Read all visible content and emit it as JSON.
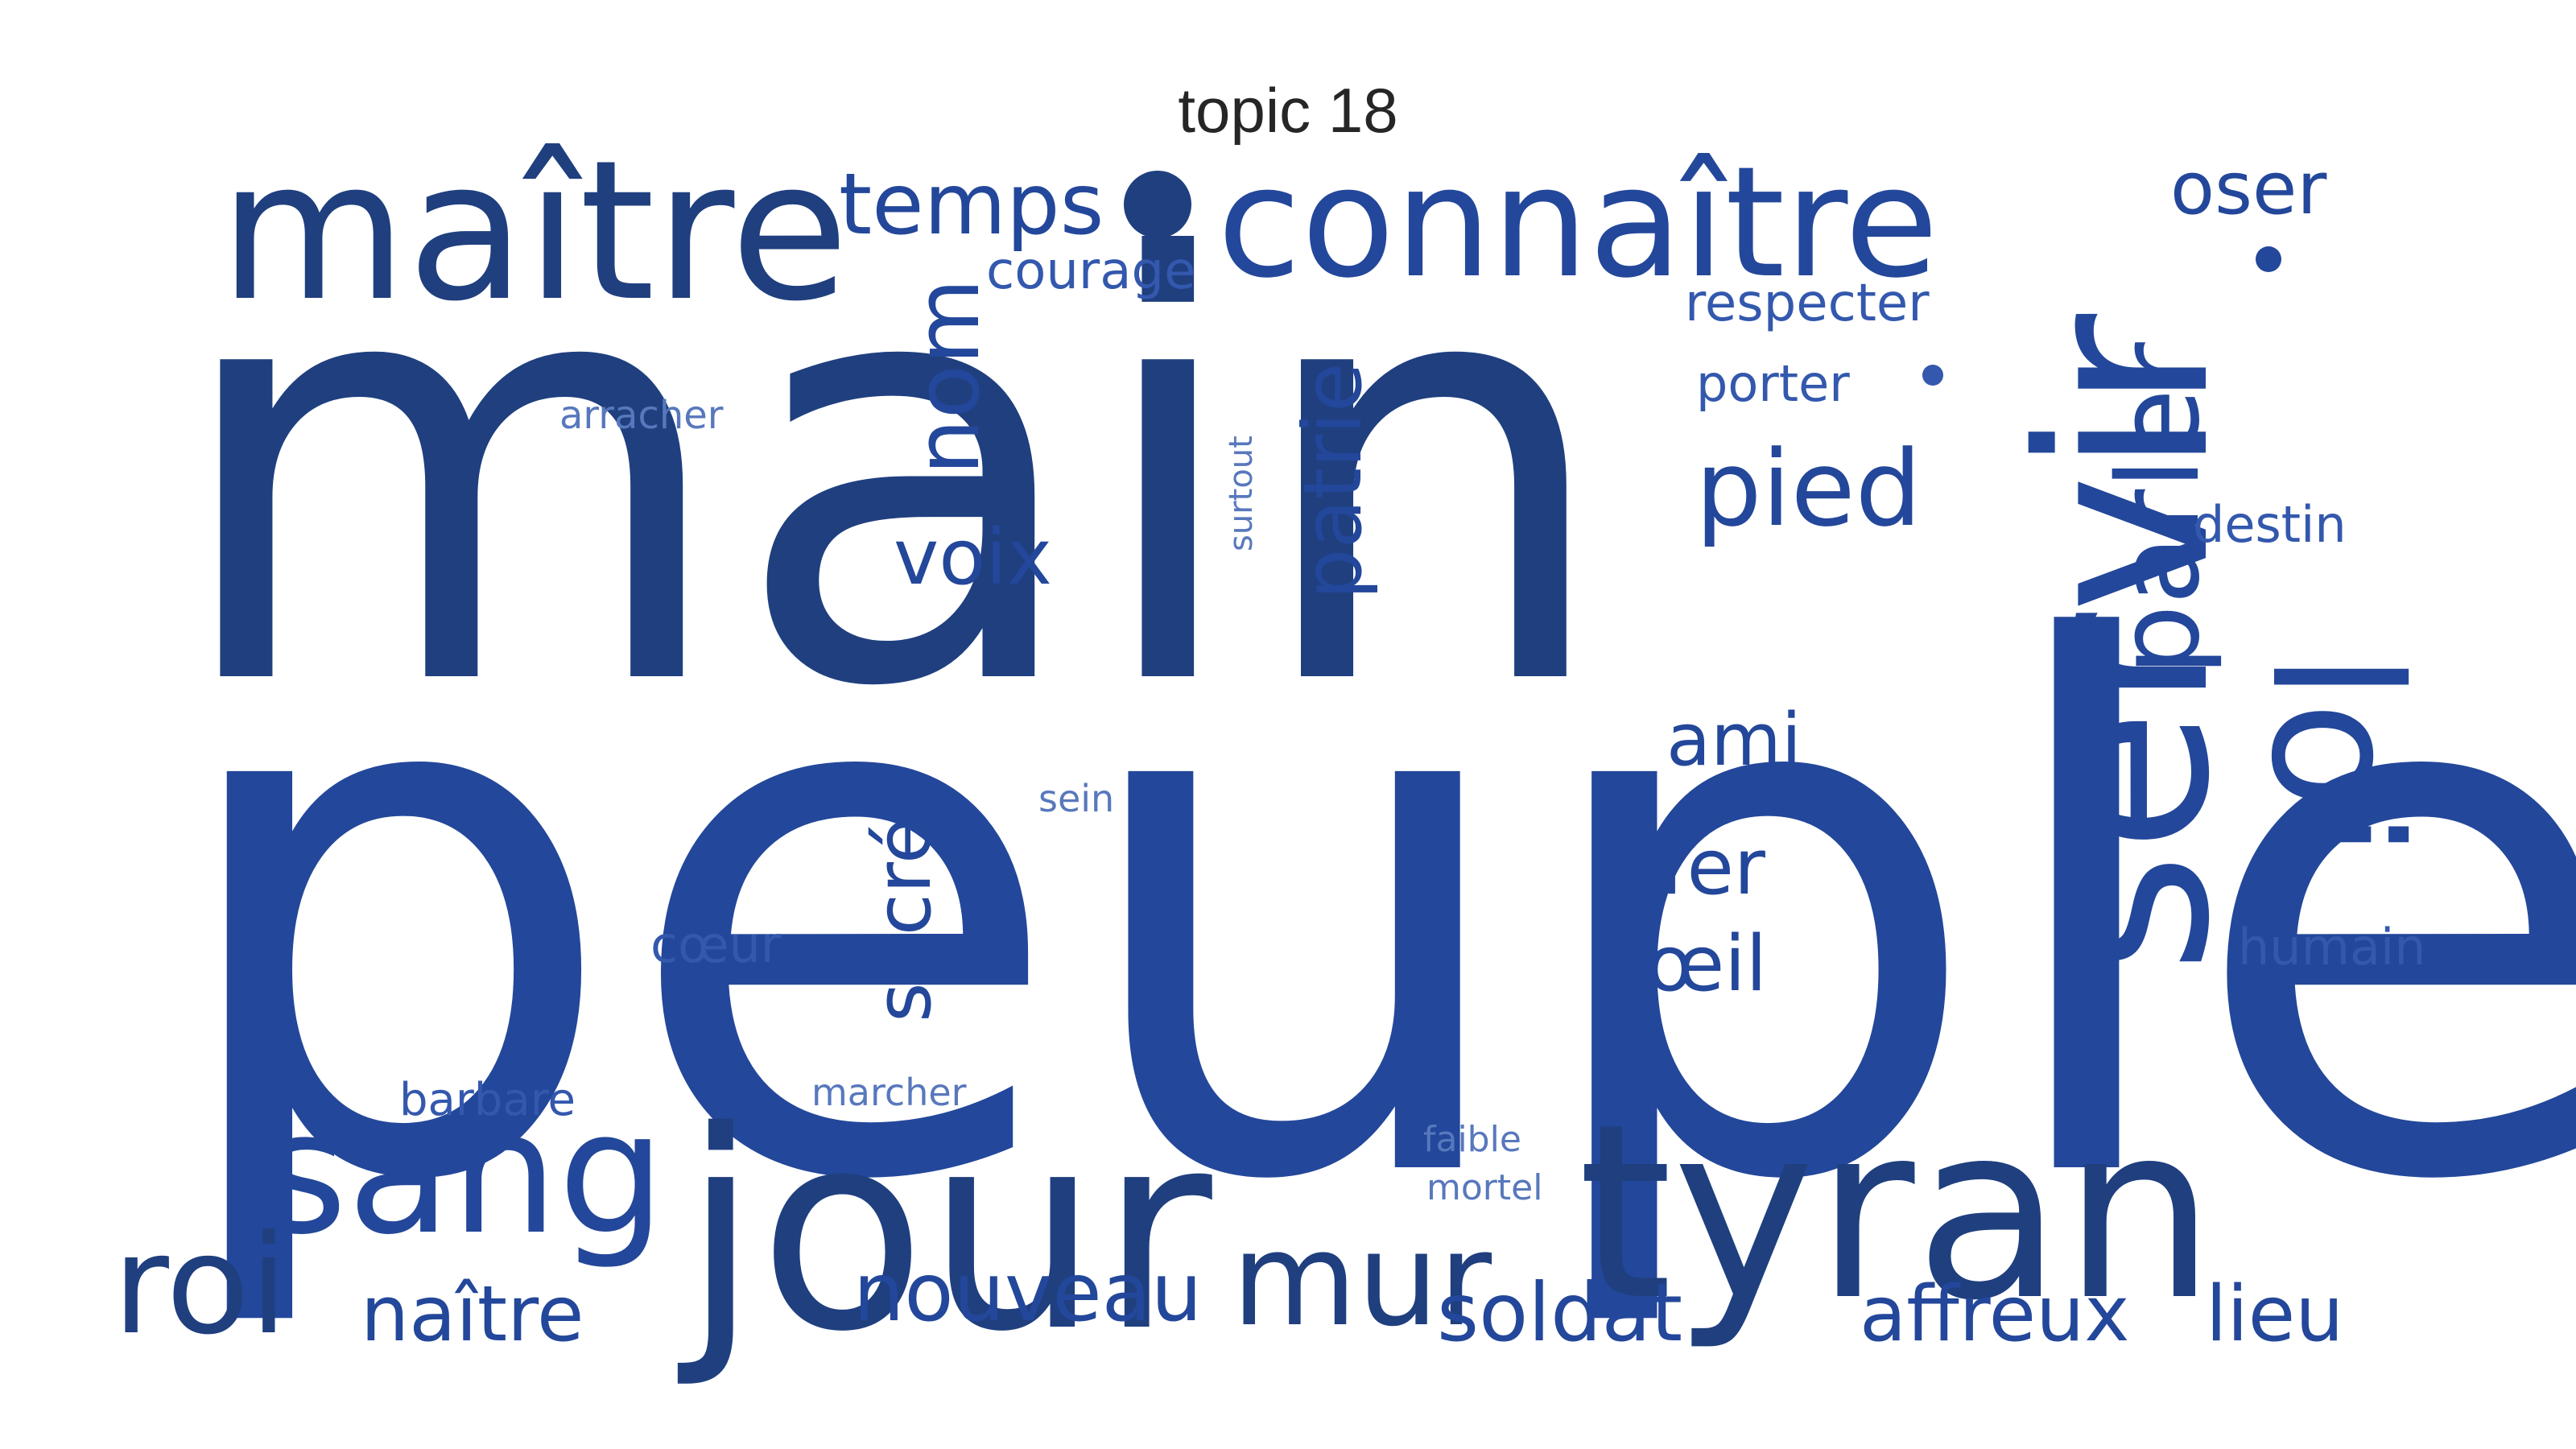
{
  "title": "topic 18",
  "colors": {
    "dark": "#1f3f7f",
    "mid": "#23479a",
    "light": "#3358ad",
    "pale": "#5878bd"
  },
  "words": [
    {
      "id": "peuple",
      "text": "peuple",
      "tone": "mid"
    },
    {
      "id": "main",
      "text": "main",
      "tone": "dark"
    },
    {
      "id": "maitre",
      "text": "maître",
      "tone": "dark"
    },
    {
      "id": "tyran",
      "text": "tyran",
      "tone": "dark"
    },
    {
      "id": "jour",
      "text": "jour",
      "tone": "dark"
    },
    {
      "id": "servir",
      "text": "servir",
      "tone": "mid"
    },
    {
      "id": "connaitre",
      "text": "connaître",
      "tone": "mid"
    },
    {
      "id": "loi",
      "text": "loi",
      "tone": "mid"
    },
    {
      "id": "sang",
      "text": "sang",
      "tone": "mid"
    },
    {
      "id": "roi",
      "text": "roi",
      "tone": "dark"
    },
    {
      "id": "mur",
      "text": "mur",
      "tone": "dark"
    },
    {
      "id": "parler",
      "text": "parler",
      "tone": "mid"
    },
    {
      "id": "pied",
      "text": "pied",
      "tone": "mid"
    },
    {
      "id": "temps",
      "text": "temps",
      "tone": "mid"
    },
    {
      "id": "nom",
      "text": "nom",
      "tone": "mid"
    },
    {
      "id": "voix",
      "text": "voix",
      "tone": "mid"
    },
    {
      "id": "patrie",
      "text": "patrie",
      "tone": "mid"
    },
    {
      "id": "oser",
      "text": "oser",
      "tone": "mid"
    },
    {
      "id": "ami",
      "text": "ami",
      "tone": "mid"
    },
    {
      "id": "fer",
      "text": "fer",
      "tone": "mid"
    },
    {
      "id": "oeil",
      "text": "œil",
      "tone": "mid"
    },
    {
      "id": "sacre",
      "text": "sacré",
      "tone": "mid"
    },
    {
      "id": "nouveau",
      "text": "nouveau",
      "tone": "mid"
    },
    {
      "id": "soldat",
      "text": "soldat",
      "tone": "mid"
    },
    {
      "id": "affreux",
      "text": "affreux",
      "tone": "mid"
    },
    {
      "id": "lieu",
      "text": "lieu",
      "tone": "mid"
    },
    {
      "id": "naitre",
      "text": "naître",
      "tone": "mid"
    },
    {
      "id": "respecter",
      "text": "respecter",
      "tone": "light"
    },
    {
      "id": "courage",
      "text": "courage",
      "tone": "light"
    },
    {
      "id": "porter",
      "text": "porter",
      "tone": "light"
    },
    {
      "id": "destin",
      "text": "destin",
      "tone": "light"
    },
    {
      "id": "humain",
      "text": "humain",
      "tone": "light"
    },
    {
      "id": "coeur",
      "text": "cœur",
      "tone": "light"
    },
    {
      "id": "barbare",
      "text": "barbare",
      "tone": "light"
    },
    {
      "id": "marcher",
      "text": "marcher",
      "tone": "pale"
    },
    {
      "id": "arracher",
      "text": "arracher",
      "tone": "pale"
    },
    {
      "id": "surtout",
      "text": "surtout",
      "tone": "pale"
    },
    {
      "id": "sein",
      "text": "sein",
      "tone": "pale"
    },
    {
      "id": "faible",
      "text": "faible",
      "tone": "pale"
    },
    {
      "id": "mortel",
      "text": "mortel",
      "tone": "pale"
    }
  ]
}
